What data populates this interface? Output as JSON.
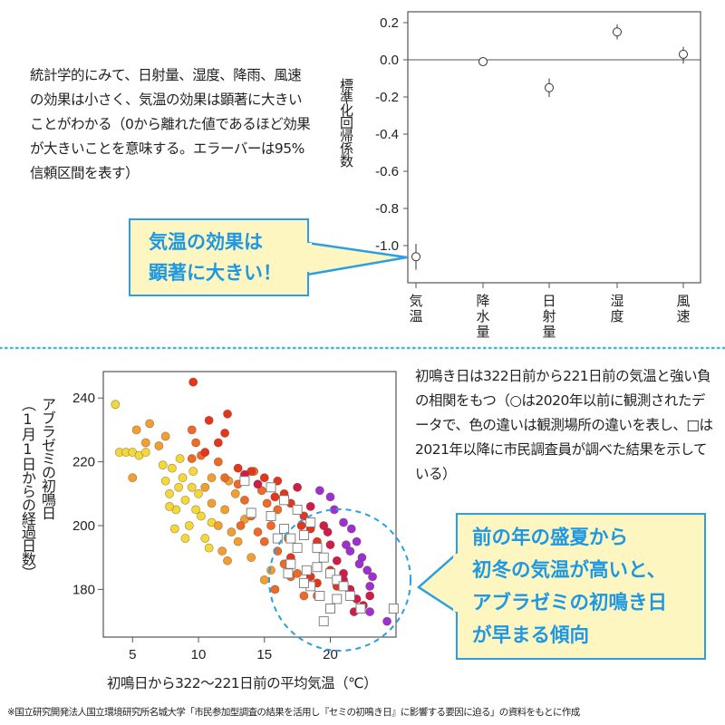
{
  "top": {
    "description": "統計学的にみて、日射量、湿度、降雨、風速の効果は小さく、気温の効果は顕著に大きいことがわかる（0から離れた値であるほど効果が大きいことを意味する。エラーバーは95%信頼区間を表す）",
    "callout": [
      "気温の効果は",
      "顕著に大きい！"
    ]
  },
  "bottom": {
    "description": "初鳴き日は322日前から221日前の気温と強い負の相関をもつ（○は2020年以前に観測されたデータで、色の違いは観測場所の違いを表し、□は2021年以降に市民調査員が調べた結果を示している）",
    "callout": [
      "前の年の盛夏から",
      "初冬の気温が高いと、",
      "アブラゼミの初鳴き日",
      "が早まる傾向"
    ]
  },
  "footnote": "※国立研究開発法人国立環境研究所名城大学「市民参加型調査の結果を活用し『セミの初鳴き日』に影響する要因に迫る」の資料をもとに作成",
  "colors": {
    "accent": "#2a9fe4",
    "callout_bg": "#fdf6c0",
    "divider": "#49b4e8"
  },
  "chart_data": [
    {
      "type": "scatter",
      "title": "",
      "ylabel": "標準化回帰係数",
      "xlabel": "",
      "ylim": [
        -1.15,
        0.25
      ],
      "yticks": [
        "0.2",
        "0.0",
        "-0.2",
        "-0.4",
        "-0.6",
        "-0.8",
        "-1.0"
      ],
      "ytick_values": [
        0.2,
        0.0,
        -0.2,
        -0.4,
        -0.6,
        -0.8,
        -1.0
      ],
      "categories": [
        "気温",
        "降水量",
        "日射量",
        "湿度",
        "風速"
      ],
      "values": [
        -1.06,
        -0.01,
        -0.15,
        0.15,
        0.03
      ],
      "ci_low": [
        -1.13,
        -0.02,
        -0.2,
        0.11,
        -0.02
      ],
      "ci_high": [
        -0.99,
        0.0,
        -0.1,
        0.19,
        0.07
      ],
      "reference_line": 0
    },
    {
      "type": "scatter",
      "xlabel": "初鳴日から322〜221日前の平均気温（℃）",
      "ylabel": "アブラゼミの初鳴日",
      "ylabel2": "（1月1日からの経過日数）",
      "xlim": [
        2.8,
        25.2
      ],
      "ylim": [
        167,
        247
      ],
      "xticks": [
        "5",
        "10",
        "15",
        "20"
      ],
      "xtick_values": [
        5,
        10,
        15,
        20
      ],
      "yticks": [
        "240",
        "220",
        "200",
        "180"
      ],
      "ytick_values": [
        240,
        220,
        200,
        180
      ],
      "site_colors": [
        "#f2d83a",
        "#f0a032",
        "#ec6a2a",
        "#e2361f",
        "#cf1c4c",
        "#9b30d4"
      ],
      "circles_2020_and_before": [
        [
          3.7,
          238,
          0
        ],
        [
          4,
          223,
          0
        ],
        [
          4.5,
          223,
          0
        ],
        [
          5,
          223,
          0
        ],
        [
          5.5,
          222,
          0
        ],
        [
          6,
          223,
          0
        ],
        [
          5,
          215,
          1
        ],
        [
          7.5,
          214,
          0
        ],
        [
          7.8,
          210,
          0
        ],
        [
          8,
          218,
          0
        ],
        [
          8.3,
          205,
          0
        ],
        [
          8.5,
          212,
          0
        ],
        [
          9,
          208,
          0
        ],
        [
          9.3,
          200,
          0
        ],
        [
          8.8,
          215,
          0
        ],
        [
          9.8,
          205,
          0
        ],
        [
          10,
          210,
          0
        ],
        [
          10.5,
          196,
          0
        ],
        [
          10.8,
          193,
          0
        ],
        [
          7.8,
          206,
          0
        ],
        [
          8.2,
          199,
          0
        ],
        [
          9.5,
          212,
          0
        ],
        [
          10.2,
          203,
          0
        ],
        [
          9,
          196,
          0
        ],
        [
          7.3,
          219,
          0
        ],
        [
          8.6,
          221,
          0
        ],
        [
          11,
          201,
          0
        ],
        [
          9.6,
          217,
          0
        ],
        [
          5.3,
          230,
          1
        ],
        [
          6.3,
          232,
          1
        ],
        [
          7.5,
          228,
          1
        ],
        [
          6,
          226,
          1
        ],
        [
          7,
          225,
          1
        ],
        [
          10.5,
          212,
          1
        ],
        [
          11,
          207,
          1
        ],
        [
          11.5,
          200,
          1
        ],
        [
          12,
          205,
          1
        ],
        [
          11.8,
          192,
          1
        ],
        [
          12.5,
          198,
          1
        ],
        [
          13,
          195,
          1
        ],
        [
          12.2,
          189,
          1
        ],
        [
          14,
          190,
          1
        ],
        [
          15.5,
          186,
          1
        ],
        [
          15,
          183,
          1
        ],
        [
          11,
          215,
          1
        ],
        [
          12.8,
          210,
          1
        ],
        [
          13.5,
          202,
          1
        ],
        [
          12.3,
          214,
          1
        ],
        [
          9.5,
          230,
          2
        ],
        [
          9.8,
          226,
          2
        ],
        [
          9.5,
          221,
          2
        ],
        [
          10.2,
          222,
          2
        ],
        [
          11.5,
          220,
          2
        ],
        [
          12,
          215,
          2
        ],
        [
          13,
          213,
          2
        ],
        [
          13.5,
          208,
          2
        ],
        [
          14,
          203,
          2
        ],
        [
          14.5,
          198,
          2
        ],
        [
          15,
          195,
          2
        ],
        [
          15.5,
          200,
          2
        ],
        [
          16,
          192,
          2
        ],
        [
          16.5,
          188,
          2
        ],
        [
          17,
          184,
          2
        ],
        [
          17.5,
          185,
          2
        ],
        [
          18,
          178,
          2
        ],
        [
          19,
          178,
          2
        ],
        [
          16,
          205,
          2
        ],
        [
          14.8,
          211,
          2
        ],
        [
          13.2,
          200,
          2
        ],
        [
          15.8,
          180,
          2
        ],
        [
          14.2,
          217,
          2
        ],
        [
          16.8,
          196,
          2
        ],
        [
          15.2,
          207,
          2
        ],
        [
          9.6,
          245,
          3
        ],
        [
          10.8,
          233,
          3
        ],
        [
          12.2,
          235,
          3
        ],
        [
          12,
          229,
          3
        ],
        [
          11.5,
          226,
          3
        ],
        [
          10.5,
          223,
          3
        ],
        [
          13,
          218,
          3
        ],
        [
          14,
          217,
          3
        ],
        [
          15,
          215,
          3
        ],
        [
          16,
          214,
          3
        ],
        [
          16.5,
          210,
          3
        ],
        [
          17,
          207,
          3
        ],
        [
          18,
          203,
          3
        ],
        [
          18.5,
          199,
          3
        ],
        [
          19,
          195,
          3
        ],
        [
          17.5,
          193,
          3
        ],
        [
          19.5,
          190,
          3
        ],
        [
          20,
          186,
          3
        ],
        [
          18.5,
          184,
          3
        ],
        [
          17,
          190,
          3
        ],
        [
          19,
          182,
          3
        ],
        [
          20.5,
          181,
          3
        ],
        [
          15.8,
          209,
          3
        ],
        [
          17.8,
          200,
          3
        ],
        [
          13.5,
          216,
          4
        ],
        [
          14.5,
          213,
          4
        ],
        [
          17.5,
          212,
          4
        ],
        [
          18.5,
          206,
          4
        ],
        [
          19.5,
          200,
          4
        ],
        [
          20,
          194,
          4
        ],
        [
          20.5,
          189,
          4
        ],
        [
          21,
          185,
          4
        ],
        [
          21.5,
          180,
          4
        ],
        [
          22,
          177,
          4
        ],
        [
          22.5,
          175,
          4
        ],
        [
          21,
          183,
          4
        ],
        [
          19.8,
          198,
          4
        ],
        [
          23,
          178,
          4
        ],
        [
          21.8,
          173,
          4
        ],
        [
          19.2,
          211,
          5
        ],
        [
          20,
          209,
          5
        ],
        [
          20.3,
          205,
          5
        ],
        [
          21,
          201,
          5
        ],
        [
          21.6,
          199,
          5
        ],
        [
          22,
          195,
          5
        ],
        [
          21.5,
          192,
          5
        ],
        [
          22.4,
          190,
          5
        ],
        [
          22.8,
          186,
          5
        ],
        [
          23.2,
          184,
          5
        ],
        [
          23,
          181,
          5
        ],
        [
          23,
          173,
          5
        ],
        [
          24.3,
          170,
          5
        ],
        [
          22.2,
          188,
          5
        ],
        [
          21.2,
          194,
          5
        ]
      ],
      "squares_2021_and_after": [
        [
          13.5,
          214
        ],
        [
          15.5,
          212
        ],
        [
          16.5,
          208
        ],
        [
          17.5,
          205
        ],
        [
          18.5,
          201
        ],
        [
          15.5,
          203
        ],
        [
          16.5,
          199
        ],
        [
          17,
          196
        ],
        [
          18,
          197
        ],
        [
          19,
          193
        ],
        [
          16,
          196
        ],
        [
          17.5,
          193
        ],
        [
          19.5,
          190
        ],
        [
          18.2,
          186
        ],
        [
          19,
          187
        ],
        [
          20,
          185
        ],
        [
          20.5,
          183
        ],
        [
          21,
          181
        ],
        [
          18.5,
          181
        ],
        [
          19.2,
          178
        ],
        [
          20.5,
          177
        ],
        [
          21.5,
          178
        ],
        [
          18,
          182
        ],
        [
          17,
          188
        ],
        [
          20,
          174
        ],
        [
          22.3,
          174
        ],
        [
          24.8,
          174
        ],
        [
          19.5,
          170
        ],
        [
          14,
          204
        ],
        [
          16.8,
          185
        ]
      ]
    }
  ]
}
